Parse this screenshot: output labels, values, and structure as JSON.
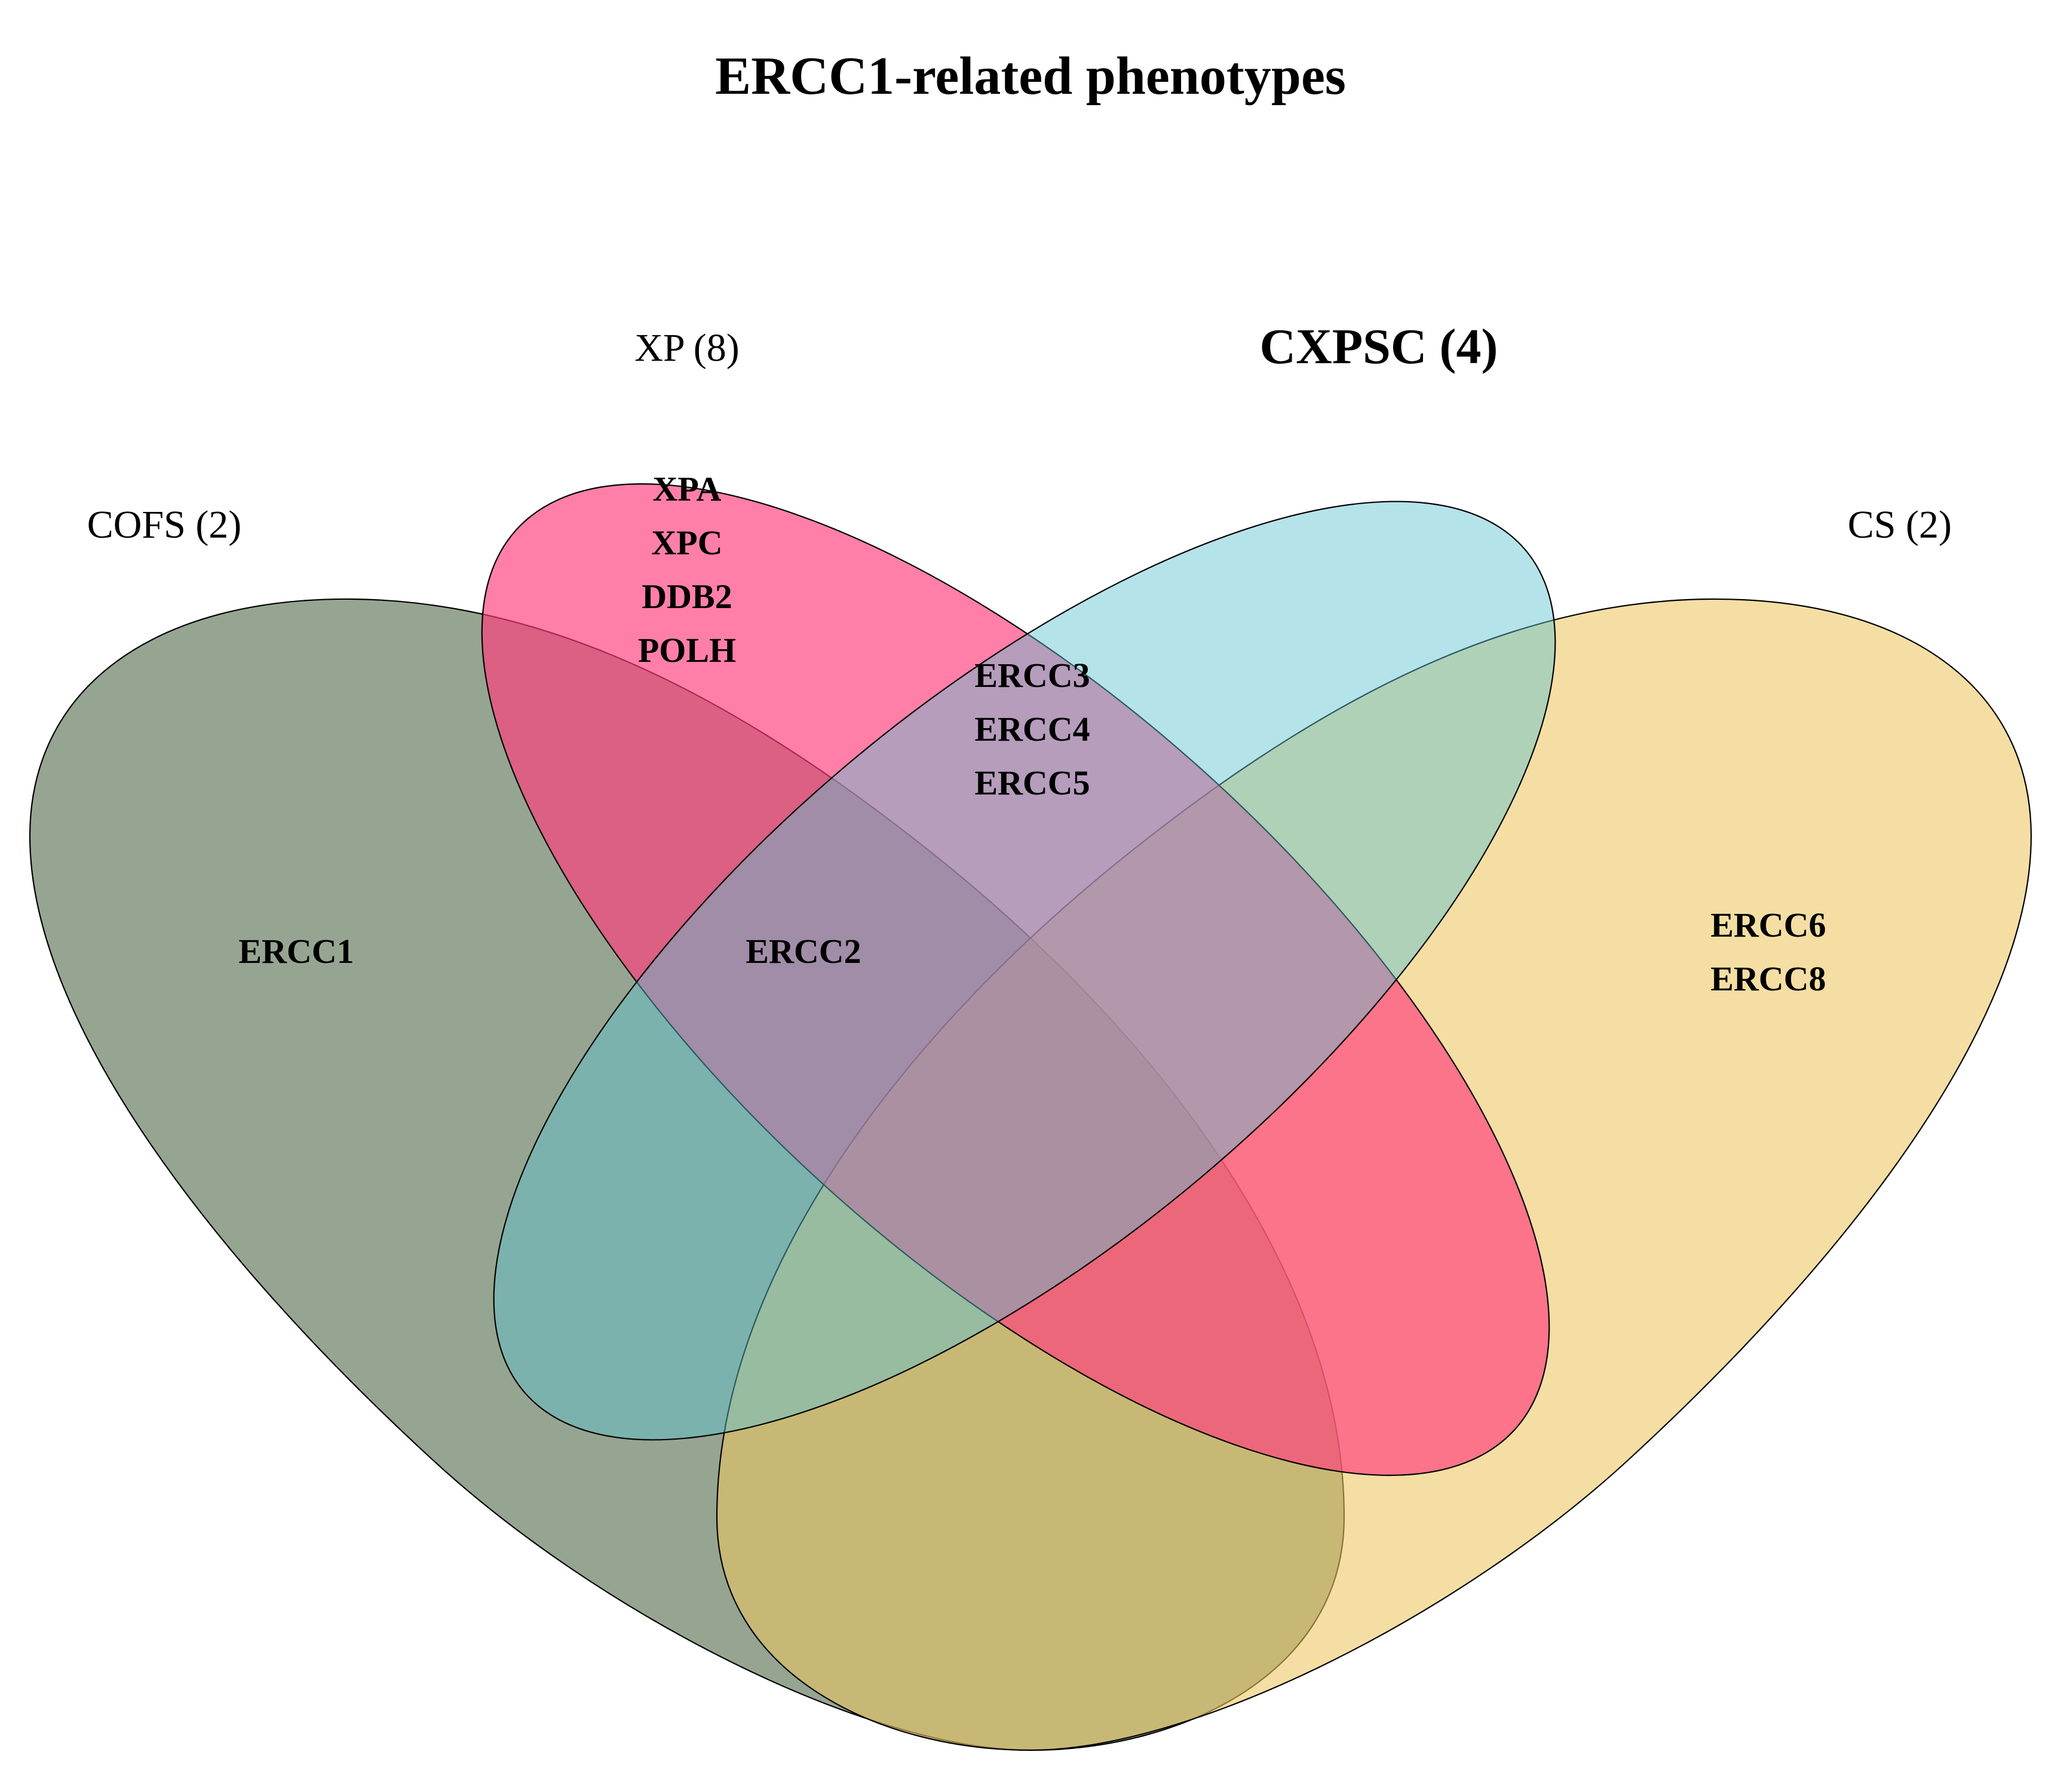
{
  "title": "ERCC1-related phenotypes",
  "sets": [
    {
      "id": "cofs",
      "label": "COFS (2)",
      "color": "#6e8266",
      "opacity": 0.72,
      "label_bold": false
    },
    {
      "id": "xp",
      "label": "XP (8)",
      "color": "#ff3c7d",
      "opacity": 0.66,
      "label_bold": false
    },
    {
      "id": "cxpsc",
      "label": "CXPSC (4)",
      "color": "#5ec2d2",
      "opacity": 0.46,
      "label_bold": true
    },
    {
      "id": "cs",
      "label": "CS (2)",
      "color": "#ecc760",
      "opacity": 0.58,
      "label_bold": false
    }
  ],
  "regions": {
    "cofs_only": [
      "ERCC1"
    ],
    "xp_only": [
      "XPA",
      "XPC",
      "DDB2",
      "POLH"
    ],
    "xp_cxpsc": [
      "ERCC3",
      "ERCC4",
      "ERCC5"
    ],
    "cofs_xp_cxpsc": [
      "ERCC2"
    ],
    "cs_only": [
      "ERCC6",
      "ERCC8"
    ]
  }
}
